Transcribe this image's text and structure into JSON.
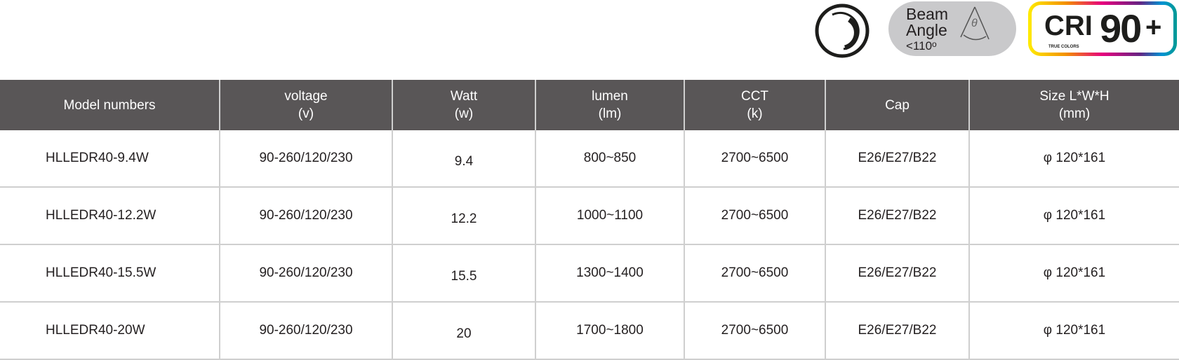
{
  "badges": {
    "power_icon": "dimmable-ring-icon",
    "beam": {
      "line1": "Beam",
      "line2": "Angle",
      "line3": "<110",
      "unit": "o",
      "symbol": "θ"
    },
    "cri": {
      "label": "CRI",
      "value": "90",
      "plus": "+",
      "sub": "TRUE COLORS"
    }
  },
  "table": {
    "headers": [
      {
        "l1": "Model numbers",
        "l2": ""
      },
      {
        "l1": "voltage",
        "l2": "(v)"
      },
      {
        "l1": "Watt",
        "l2": "(w)"
      },
      {
        "l1": "lumen",
        "l2": "(lm)"
      },
      {
        "l1": "CCT",
        "l2": "(k)"
      },
      {
        "l1": "Cap",
        "l2": ""
      },
      {
        "l1": "Size L*W*H",
        "l2": "(mm)"
      }
    ],
    "rows": [
      [
        "HLLEDR40-9.4W",
        "90-260/120/230",
        "9.4",
        "800~850",
        "2700~6500",
        "E26/E27/B22",
        "φ 120*161"
      ],
      [
        "HLLEDR40-12.2W",
        "90-260/120/230",
        "12.2",
        "1000~1100",
        "2700~6500",
        "E26/E27/B22",
        "φ 120*161"
      ],
      [
        "HLLEDR40-15.5W",
        "90-260/120/230",
        "15.5",
        "1300~1400",
        "2700~6500",
        "E26/E27/B22",
        "φ 120*161"
      ],
      [
        "HLLEDR40-20W",
        "90-260/120/230",
        "20",
        "1700~1800",
        "2700~6500",
        "E26/E27/B22",
        "φ 120*161"
      ]
    ]
  }
}
